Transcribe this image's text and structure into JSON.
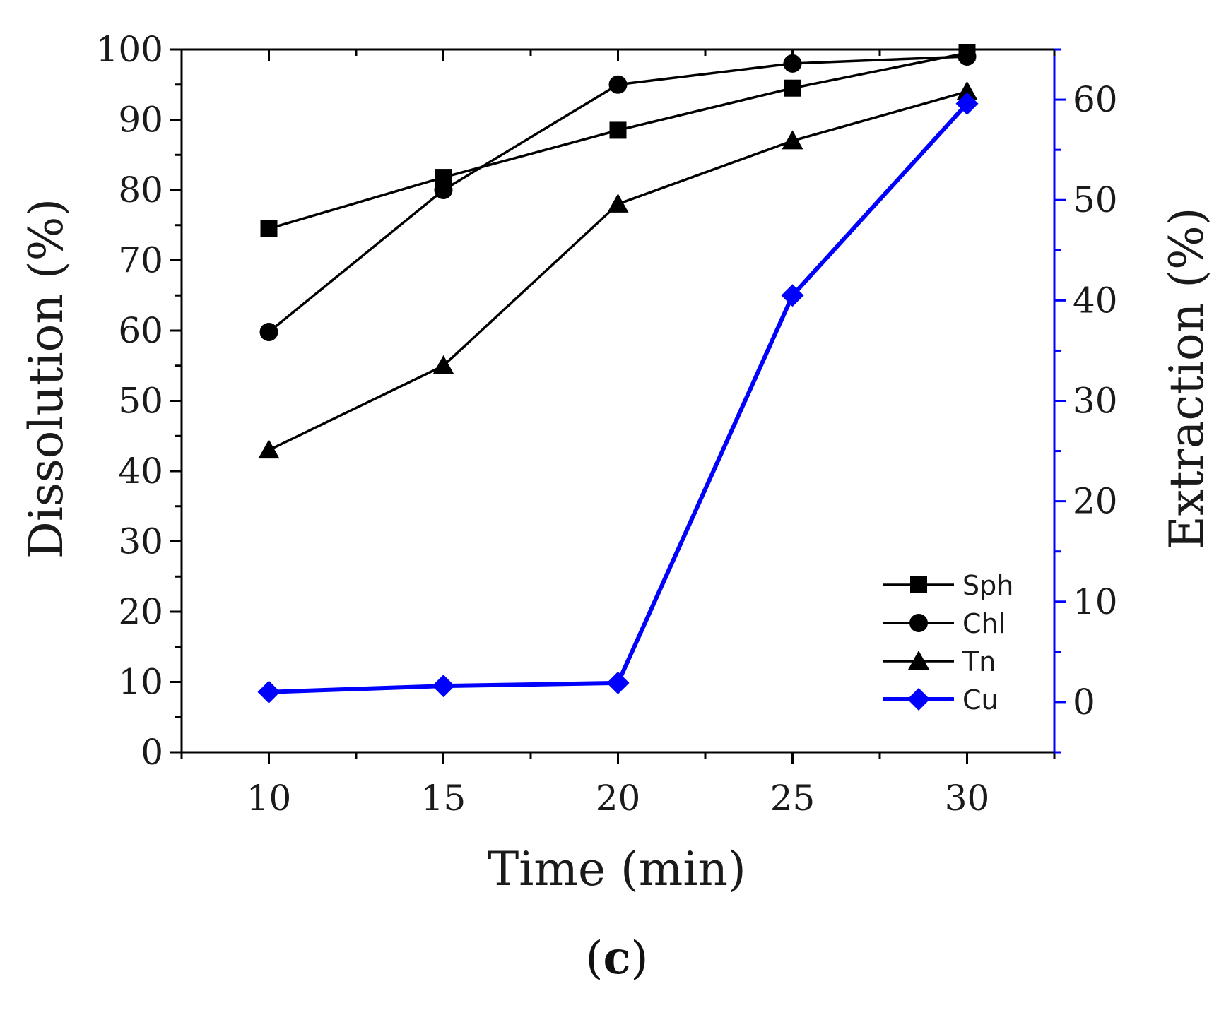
{
  "chart_data": {
    "type": "line",
    "panel_label_open": "(",
    "panel_label_letter": "c",
    "panel_label_close": ")",
    "xlabel": "Time (min)",
    "ylabel": "Dissolution (%)",
    "y2label": "Extraction (%)",
    "x": [
      10,
      15,
      20,
      25,
      30
    ],
    "x_ticks": [
      "10",
      "15",
      "20",
      "25",
      "30"
    ],
    "y_ticks": [
      "0",
      "10",
      "20",
      "30",
      "40",
      "50",
      "60",
      "70",
      "80",
      "90",
      "100"
    ],
    "y2_ticks": [
      "0",
      "10",
      "20",
      "30",
      "40",
      "50",
      "60"
    ],
    "xlim": [
      7.5,
      32.5
    ],
    "ylim": [
      0,
      100
    ],
    "y2lim": [
      -5,
      65
    ],
    "legend_position": "bottom-right",
    "series": [
      {
        "name": "Sph",
        "axis": "left",
        "marker": "square",
        "color": "#000000",
        "values": [
          74.5,
          81.8,
          88.5,
          94.5,
          99.5
        ]
      },
      {
        "name": "Chl",
        "axis": "left",
        "marker": "circle",
        "color": "#000000",
        "values": [
          59.8,
          80.0,
          95.0,
          98.0,
          99.0
        ]
      },
      {
        "name": "Tn",
        "axis": "left",
        "marker": "triangle",
        "color": "#000000",
        "values": [
          43.0,
          55.0,
          78.0,
          87.0,
          94.0
        ]
      },
      {
        "name": "Cu",
        "axis": "right",
        "marker": "diamond",
        "color": "#0000ff",
        "values": [
          1.0,
          1.6,
          1.9,
          40.5,
          59.6
        ]
      }
    ],
    "colors": {
      "axis": "#000000",
      "right_axis": "#0000ff",
      "line": "#000000"
    }
  }
}
